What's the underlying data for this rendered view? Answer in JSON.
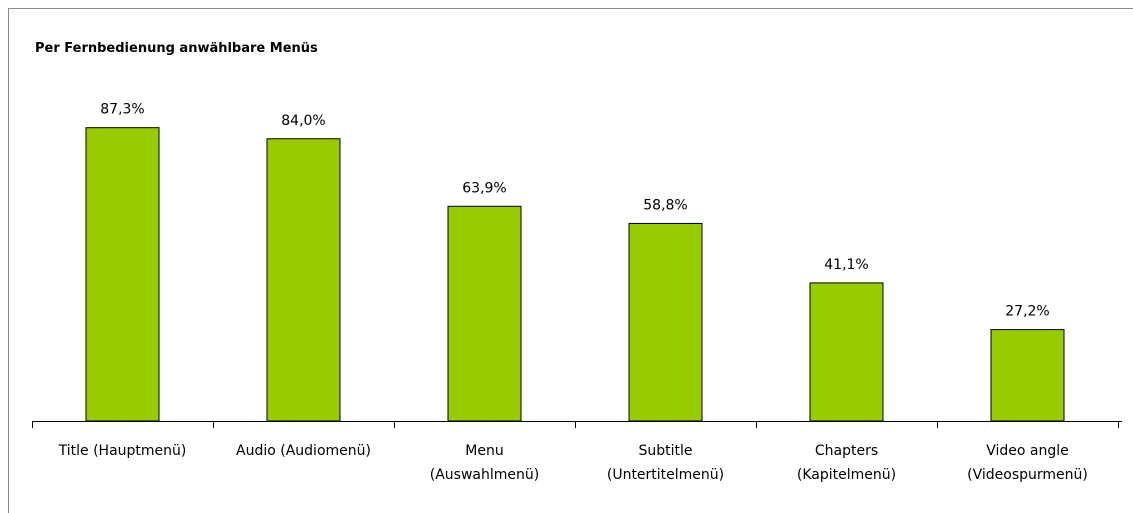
{
  "chart_data": {
    "type": "bar",
    "title": "Per Fernbedienung anwählbare Menüs",
    "categories": [
      "Title (Hauptmenü)",
      "Audio (Audiomenü)",
      "Menu\n(Auswahlmenü)",
      "Subtitle\n(Untertitelmenü)",
      "Chapters\n(Kapitelmenü)",
      "Video angle\n(Videospurmenü)"
    ],
    "values": [
      87.3,
      84.0,
      63.9,
      58.8,
      41.1,
      27.2
    ],
    "value_labels": [
      "87,3%",
      "84,0%",
      "63,9%",
      "58,8%",
      "41,1%",
      "27,2%"
    ],
    "color": "#99cc00",
    "ylim": [
      0,
      100
    ]
  }
}
